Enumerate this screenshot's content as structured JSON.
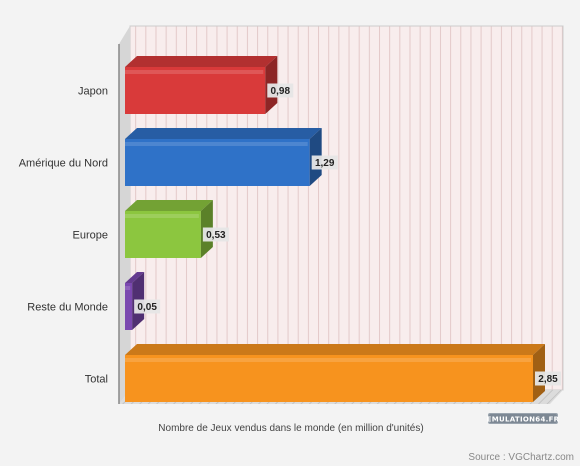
{
  "chart_data": {
    "type": "bar",
    "orientation": "horizontal",
    "categories": [
      "Japon",
      "Amérique du Nord",
      "Europe",
      "Reste du Monde",
      "Total"
    ],
    "values": [
      0.98,
      1.29,
      0.53,
      0.05,
      2.85
    ],
    "value_labels": [
      "0,98",
      "1,29",
      "0,53",
      "0,05",
      "2,85"
    ],
    "colors": [
      "#d93a3a",
      "#2f72c8",
      "#8cc63f",
      "#7b48b0",
      "#f7931e"
    ],
    "xlabel": "Nombre de Jeux vendus dans le monde (en million d'unités)",
    "xlim": [
      0,
      3.15
    ],
    "grid": true
  },
  "source": "Source : VGChartz.com",
  "logo": "EMULATION64.FR"
}
